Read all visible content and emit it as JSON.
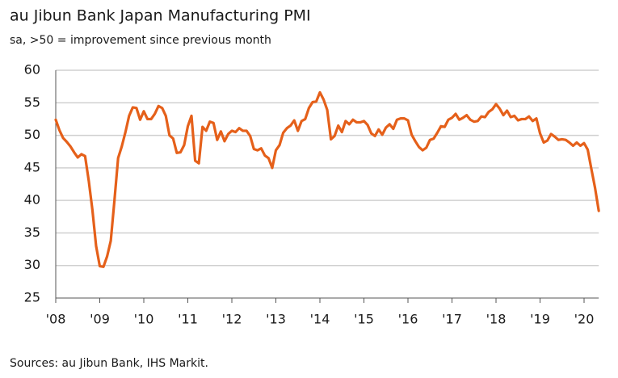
{
  "chart_data": {
    "type": "line",
    "title": "au Jibun Bank Japan Manufacturing PMI",
    "subtitle": "sa, >50 = improvement since previous month",
    "source": "Sources: au Jibun Bank, IHS Markit.",
    "categories": [
      "'08",
      null,
      null,
      null,
      null,
      null,
      null,
      null,
      null,
      null,
      null,
      null,
      "'09",
      null,
      null,
      null,
      null,
      null,
      null,
      null,
      null,
      null,
      null,
      null,
      "'10",
      null,
      null,
      null,
      null,
      null,
      null,
      null,
      null,
      null,
      null,
      null,
      "'11",
      null,
      null,
      null,
      null,
      null,
      null,
      null,
      null,
      null,
      null,
      null,
      "'12",
      null,
      null,
      null,
      null,
      null,
      null,
      null,
      null,
      null,
      null,
      null,
      "'13",
      null,
      null,
      null,
      null,
      null,
      null,
      null,
      null,
      null,
      null,
      null,
      "'14",
      null,
      null,
      null,
      null,
      null,
      null,
      null,
      null,
      null,
      null,
      null,
      "'15",
      null,
      null,
      null,
      null,
      null,
      null,
      null,
      null,
      null,
      null,
      null,
      "'16",
      null,
      null,
      null,
      null,
      null,
      null,
      null,
      null,
      null,
      null,
      null,
      "'17",
      null,
      null,
      null,
      null,
      null,
      null,
      null,
      null,
      null,
      null,
      null,
      "'18",
      null,
      null,
      null,
      null,
      null,
      null,
      null,
      null,
      null,
      null,
      null,
      "'19",
      null,
      null,
      null,
      null,
      null,
      null,
      null,
      null,
      null,
      null,
      null,
      "'20",
      null,
      null,
      null,
      null
    ],
    "series": [
      {
        "color": "#e5601a",
        "values": [
          52.4,
          50.8,
          49.6,
          49.0,
          48.3,
          47.4,
          46.6,
          47.1,
          46.8,
          43.0,
          38.5,
          33.0,
          29.9,
          29.8,
          31.4,
          33.8,
          40.0,
          46.5,
          48.3,
          50.5,
          53.0,
          54.3,
          54.2,
          52.4,
          53.7,
          52.5,
          52.5,
          53.3,
          54.5,
          54.2,
          53.0,
          50.0,
          49.5,
          47.3,
          47.4,
          48.5,
          51.4,
          53.0,
          46.1,
          45.7,
          51.3,
          50.7,
          52.1,
          51.9,
          49.3,
          50.6,
          49.1,
          50.2,
          50.7,
          50.5,
          51.1,
          50.7,
          50.7,
          49.9,
          47.9,
          47.7,
          48.0,
          46.9,
          46.5,
          45.0,
          47.7,
          48.5,
          50.4,
          51.1,
          51.5,
          52.3,
          50.7,
          52.2,
          52.5,
          54.2,
          55.1,
          55.2,
          56.6,
          55.5,
          53.9,
          49.4,
          49.9,
          51.5,
          50.5,
          52.2,
          51.7,
          52.4,
          52.0,
          52.0,
          52.2,
          51.6,
          50.3,
          49.9,
          50.9,
          50.1,
          51.2,
          51.7,
          51.0,
          52.4,
          52.6,
          52.6,
          52.3,
          50.1,
          49.1,
          48.2,
          47.7,
          48.1,
          49.3,
          49.5,
          50.4,
          51.4,
          51.3,
          52.4,
          52.7,
          53.3,
          52.4,
          52.7,
          53.1,
          52.4,
          52.1,
          52.2,
          52.9,
          52.8,
          53.6,
          54.0,
          54.8,
          54.1,
          53.1,
          53.8,
          52.8,
          53.0,
          52.3,
          52.5,
          52.5,
          52.9,
          52.2,
          52.6,
          50.3,
          48.9,
          49.2,
          50.2,
          49.8,
          49.3,
          49.4,
          49.3,
          48.9,
          48.4,
          48.9,
          48.4,
          48.8,
          47.8,
          44.8,
          41.9,
          38.4
        ]
      }
    ],
    "ylim": [
      25,
      60
    ],
    "yticks": [
      25,
      30,
      35,
      40,
      45,
      50,
      55,
      60
    ],
    "grid": true
  }
}
